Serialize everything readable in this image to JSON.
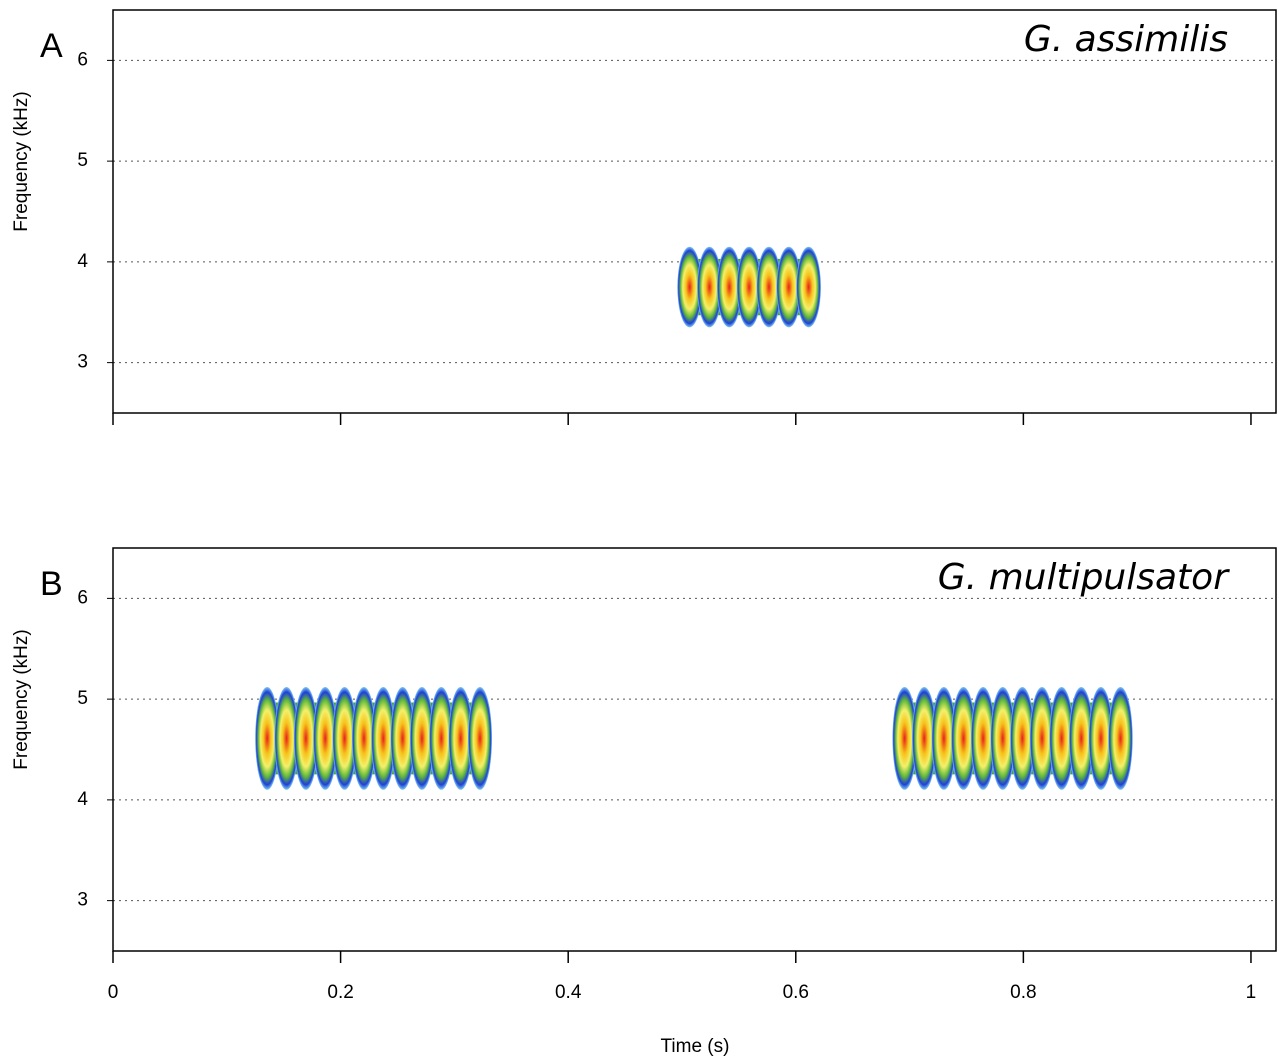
{
  "chart_data": [
    {
      "type": "spectrogram",
      "panel": "A",
      "title": "G. assimilis",
      "ylabel": "Frequency (kHz)",
      "xlim": [
        0,
        1.022
      ],
      "ylim": [
        2.5,
        6.5
      ],
      "yticks": [
        3,
        4,
        5,
        6
      ],
      "xticks": [
        0,
        0.2,
        0.4,
        0.6,
        0.8,
        1
      ],
      "xtick_labels": false,
      "grid": true,
      "segments": [
        {
          "start": 0.498,
          "end": 0.62,
          "low": 3.35,
          "high": 4.15
        }
      ]
    },
    {
      "type": "spectrogram",
      "panel": "B",
      "title": "G. multipulsator",
      "ylabel": "Frequency (kHz)",
      "xlabel": "Time (s)",
      "xlim": [
        0,
        1.022
      ],
      "ylim": [
        2.5,
        6.5
      ],
      "yticks": [
        3,
        4,
        5,
        6
      ],
      "xticks": [
        0,
        0.2,
        0.4,
        0.6,
        0.8,
        1
      ],
      "xtick_labels": true,
      "grid": true,
      "segments": [
        {
          "start": 0.127,
          "end": 0.331,
          "low": 4.1,
          "high": 5.12
        },
        {
          "start": 0.687,
          "end": 0.894,
          "low": 4.1,
          "high": 5.12
        }
      ]
    }
  ]
}
